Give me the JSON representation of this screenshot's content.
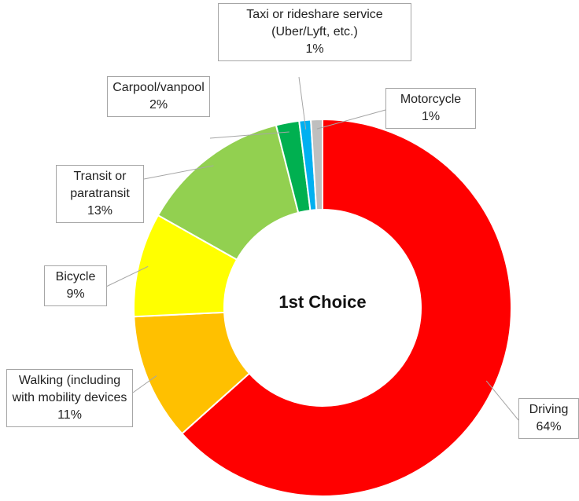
{
  "chart_data": {
    "type": "donut",
    "title": "1st Choice",
    "categories": [
      "Driving",
      "Walking (including with mobility devices",
      "Bicycle",
      "Transit or paratransit",
      "Carpool/vanpool",
      "Taxi or rideshare service (Uber/Lyft, etc.)",
      "Motorcycle"
    ],
    "values": [
      64,
      11,
      9,
      13,
      2,
      1,
      1
    ],
    "value_labels": [
      "64%",
      "11%",
      "9%",
      "13%",
      "2%",
      "1%",
      "1%"
    ],
    "colors": [
      "#ff0000",
      "#ffc000",
      "#ffff00",
      "#92d050",
      "#00b050",
      "#00b0f0",
      "#bfbfbf"
    ]
  }
}
